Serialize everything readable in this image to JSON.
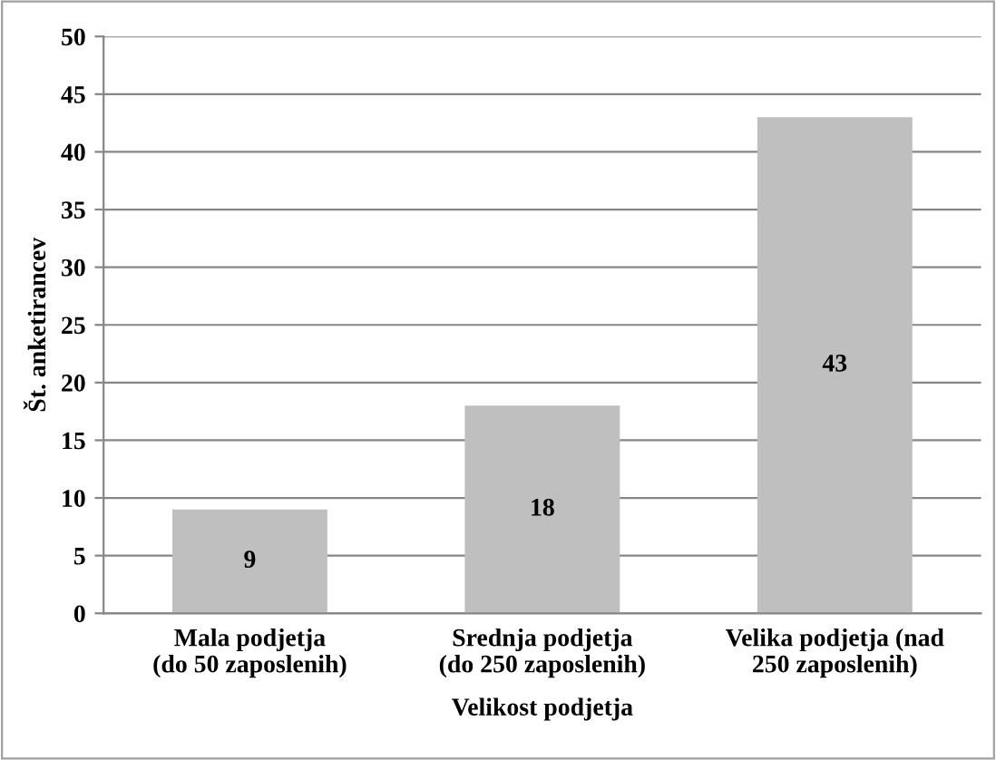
{
  "chart_data": {
    "type": "bar",
    "xlabel": "Velikost podjetja",
    "ylabel": "Št. anketirancev",
    "categories": [
      "Mala podjetja\n(do 50 zaposlenih)",
      "Srednja podjetja\n(do 250 zaposlenih)",
      "Velika podjetja (nad\n250 zaposlenih)"
    ],
    "values": [
      9,
      18,
      43
    ],
    "color": "#bfbfbf",
    "ylim": [
      0,
      50
    ],
    "yticks": [
      0,
      5,
      10,
      15,
      20,
      25,
      30,
      35,
      40,
      45,
      50
    ],
    "grid": "y",
    "data_labels": true
  }
}
